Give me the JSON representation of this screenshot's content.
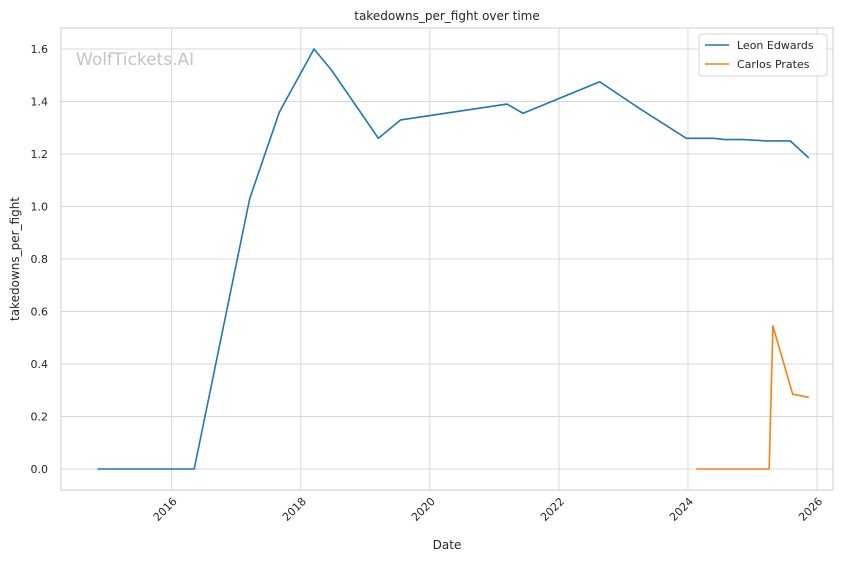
{
  "chart_data": {
    "type": "line",
    "title": "takedowns_per_fight over time",
    "xlabel": "Date",
    "ylabel": "takedowns_per_fight",
    "xlim": [
      "2014-04-15",
      "2026-04-01"
    ],
    "ylim": [
      -0.08,
      1.68
    ],
    "x_ticks": [
      "2016",
      "2018",
      "2020",
      "2022",
      "2024",
      "2026"
    ],
    "y_ticks": [
      "0.0",
      "0.2",
      "0.4",
      "0.6",
      "0.8",
      "1.0",
      "1.2",
      "1.4",
      "1.6"
    ],
    "grid": true,
    "legend_position": "top-right",
    "watermark": "WolfTickets.AI",
    "series": [
      {
        "name": "Leon Edwards",
        "color": "#1f77b4",
        "points": [
          {
            "x": "2014-11-08",
            "y": 0.0
          },
          {
            "x": "2015-04-18",
            "y": 0.0
          },
          {
            "x": "2015-07-18",
            "y": 0.0
          },
          {
            "x": "2015-12-19",
            "y": 0.0
          },
          {
            "x": "2016-05-08",
            "y": 0.0
          },
          {
            "x": "2017-03-18",
            "y": 1.03
          },
          {
            "x": "2017-09-02",
            "y": 1.36
          },
          {
            "x": "2018-03-17",
            "y": 1.6
          },
          {
            "x": "2018-06-23",
            "y": 1.52
          },
          {
            "x": "2019-03-16",
            "y": 1.26
          },
          {
            "x": "2019-07-20",
            "y": 1.33
          },
          {
            "x": "2021-03-13",
            "y": 1.39
          },
          {
            "x": "2021-06-12",
            "y": 1.355
          },
          {
            "x": "2022-08-20",
            "y": 1.475
          },
          {
            "x": "2023-03-18",
            "y": 1.38
          },
          {
            "x": "2023-12-23",
            "y": 1.26
          },
          {
            "x": "2024-05-25",
            "y": 1.26
          },
          {
            "x": "2024-07-27",
            "y": 1.255
          },
          {
            "x": "2024-11-09",
            "y": 1.255
          },
          {
            "x": "2025-03-22",
            "y": 1.25
          },
          {
            "x": "2025-08-02",
            "y": 1.25
          },
          {
            "x": "2025-11-15",
            "y": 1.185
          }
        ]
      },
      {
        "name": "Carlos Prates",
        "color": "#ff7f0e",
        "points": [
          {
            "x": "2024-02-17",
            "y": 0.0
          },
          {
            "x": "2024-06-15",
            "y": 0.0
          },
          {
            "x": "2024-11-09",
            "y": 0.0
          },
          {
            "x": "2025-04-05",
            "y": 0.0
          },
          {
            "x": "2025-04-26",
            "y": 0.545
          },
          {
            "x": "2025-08-16",
            "y": 0.285
          },
          {
            "x": "2025-11-15",
            "y": 0.273
          }
        ]
      }
    ]
  }
}
